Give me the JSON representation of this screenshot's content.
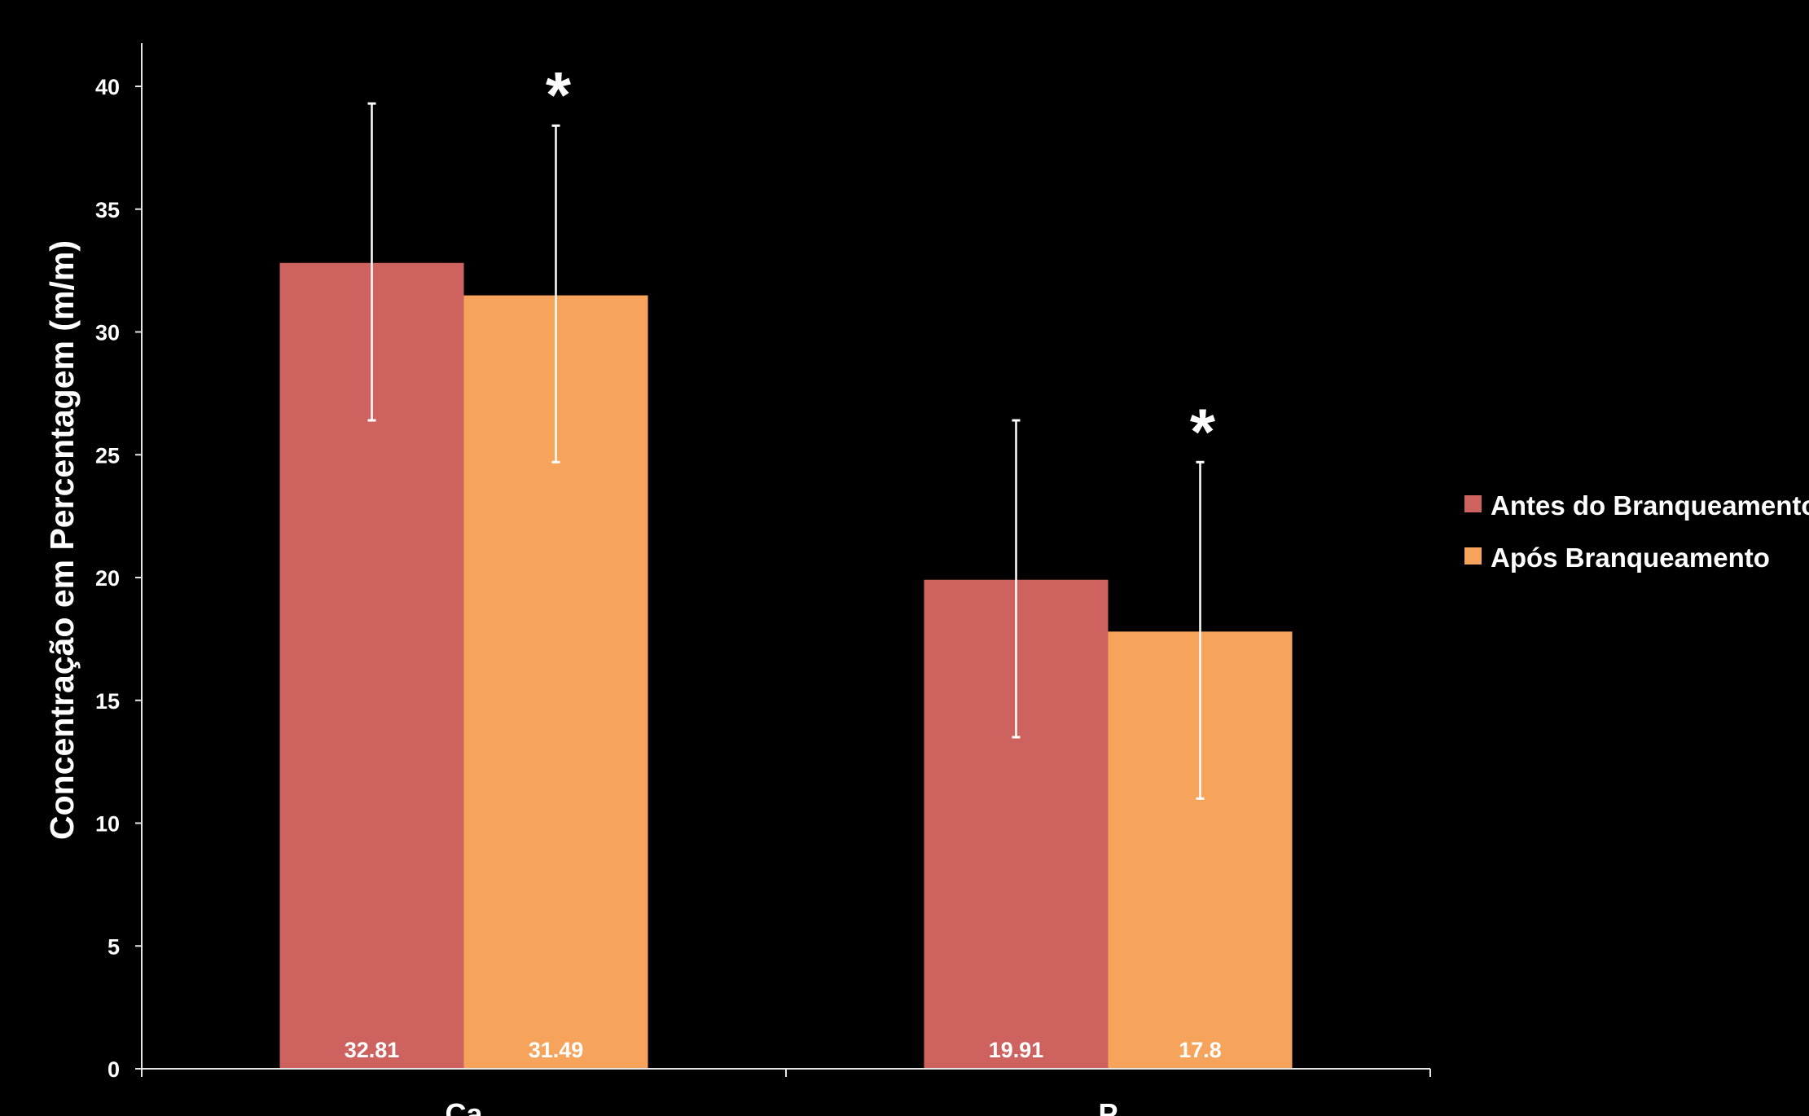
{
  "chart_data": {
    "type": "bar",
    "categories": [
      "Ca",
      "P"
    ],
    "series": [
      {
        "name": "Antes do Branqueamento",
        "color": "#cd625e",
        "values": [
          32.81,
          19.91
        ],
        "error_low": [
          26.4,
          13.5
        ],
        "error_high": [
          39.3,
          26.4
        ],
        "value_labels": [
          "32.81",
          "19.91"
        ],
        "annotations": [
          "",
          ""
        ]
      },
      {
        "name": "Após Branqueamento",
        "color": "#f6a45c",
        "values": [
          31.49,
          17.8
        ],
        "error_low": [
          24.7,
          11.0
        ],
        "error_high": [
          38.4,
          24.7
        ],
        "value_labels": [
          "31.49",
          "17.8"
        ],
        "annotations": [
          "*",
          "*"
        ]
      }
    ],
    "ylabel": "Concentração em Percentagem (m/m)",
    "xlabel": "",
    "title": "",
    "ylim": [
      0,
      40
    ],
    "yticks": [
      0,
      5,
      10,
      15,
      20,
      25,
      30,
      35,
      40
    ],
    "grid": false,
    "legend_position": "right",
    "background": "#000000",
    "axis_color": "#e6e6e6",
    "errorbar_color": "#ffffff"
  }
}
